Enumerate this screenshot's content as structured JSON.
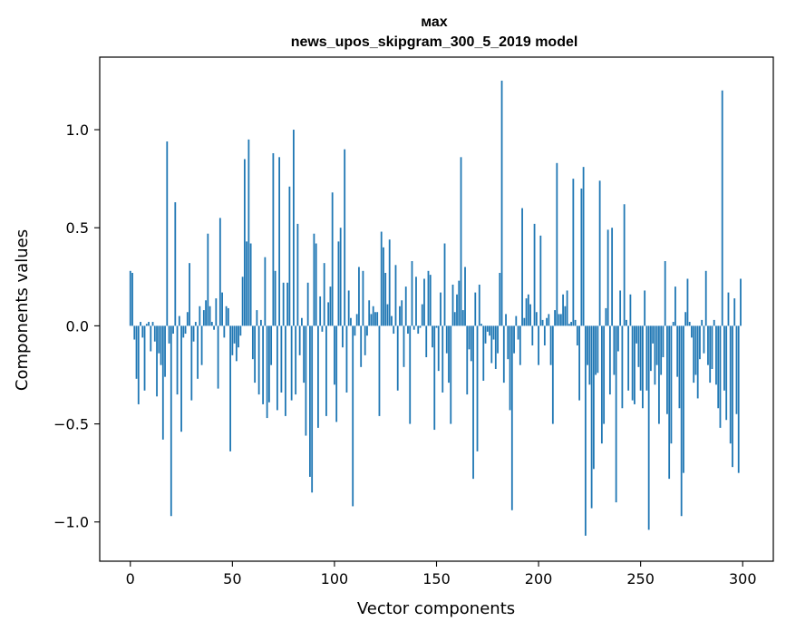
{
  "chart_data": {
    "type": "bar",
    "title": "мах",
    "subtitle": "news_upos_skipgram_300_5_2019 model",
    "xlabel": "Vector components",
    "ylabel": "Components values",
    "xlim": [
      -15,
      315
    ],
    "ylim": [
      -1.2,
      1.37
    ],
    "xticks": [
      0,
      50,
      100,
      150,
      200,
      250,
      300
    ],
    "xtick_labels": [
      "0",
      "50",
      "100",
      "150",
      "200",
      "250",
      "300"
    ],
    "yticks": [
      -1.0,
      -0.5,
      0.0,
      0.5,
      1.0
    ],
    "ytick_labels": [
      "−1.0",
      "−0.5",
      "0.0",
      "0.5",
      "1.0"
    ],
    "bar_color": "#1f77b4",
    "grid": false,
    "x": [
      0,
      1,
      2,
      3,
      4,
      5,
      6,
      7,
      8,
      9,
      10,
      11,
      12,
      13,
      14,
      15,
      16,
      17,
      18,
      19,
      20,
      21,
      22,
      23,
      24,
      25,
      26,
      27,
      28,
      29,
      30,
      31,
      32,
      33,
      34,
      35,
      36,
      37,
      38,
      39,
      40,
      41,
      42,
      43,
      44,
      45,
      46,
      47,
      48,
      49,
      50,
      51,
      52,
      53,
      54,
      55,
      56,
      57,
      58,
      59,
      60,
      61,
      62,
      63,
      64,
      65,
      66,
      67,
      68,
      69,
      70,
      71,
      72,
      73,
      74,
      75,
      76,
      77,
      78,
      79,
      80,
      81,
      82,
      83,
      84,
      85,
      86,
      87,
      88,
      89,
      90,
      91,
      92,
      93,
      94,
      95,
      96,
      97,
      98,
      99,
      100,
      101,
      102,
      103,
      104,
      105,
      106,
      107,
      108,
      109,
      110,
      111,
      112,
      113,
      114,
      115,
      116,
      117,
      118,
      119,
      120,
      121,
      122,
      123,
      124,
      125,
      126,
      127,
      128,
      129,
      130,
      131,
      132,
      133,
      134,
      135,
      136,
      137,
      138,
      139,
      140,
      141,
      142,
      143,
      144,
      145,
      146,
      147,
      148,
      149,
      150,
      151,
      152,
      153,
      154,
      155,
      156,
      157,
      158,
      159,
      160,
      161,
      162,
      163,
      164,
      165,
      166,
      167,
      168,
      169,
      170,
      171,
      172,
      173,
      174,
      175,
      176,
      177,
      178,
      179,
      180,
      181,
      182,
      183,
      184,
      185,
      186,
      187,
      188,
      189,
      190,
      191,
      192,
      193,
      194,
      195,
      196,
      197,
      198,
      199,
      200,
      201,
      202,
      203,
      204,
      205,
      206,
      207,
      208,
      209,
      210,
      211,
      212,
      213,
      214,
      215,
      216,
      217,
      218,
      219,
      220,
      221,
      222,
      223,
      224,
      225,
      226,
      227,
      228,
      229,
      230,
      231,
      232,
      233,
      234,
      235,
      236,
      237,
      238,
      239,
      240,
      241,
      242,
      243,
      244,
      245,
      246,
      247,
      248,
      249,
      250,
      251,
      252,
      253,
      254,
      255,
      256,
      257,
      258,
      259,
      260,
      261,
      262,
      263,
      264,
      265,
      266,
      267,
      268,
      269,
      270,
      271,
      272,
      273,
      274,
      275,
      276,
      277,
      278,
      279,
      280,
      281,
      282,
      283,
      284,
      285,
      286,
      287,
      288,
      289,
      290,
      291,
      292,
      293,
      294,
      295,
      296,
      297,
      298,
      299
    ],
    "values": [
      0.28,
      0.27,
      -0.07,
      -0.27,
      -0.4,
      0.02,
      -0.06,
      -0.33,
      0.01,
      0.02,
      -0.13,
      0.02,
      -0.08,
      -0.36,
      -0.14,
      -0.2,
      -0.58,
      -0.26,
      0.94,
      -0.09,
      -0.97,
      -0.04,
      0.63,
      -0.35,
      0.05,
      -0.54,
      -0.06,
      -0.04,
      0.07,
      0.32,
      -0.38,
      -0.08,
      0.02,
      -0.27,
      0.1,
      -0.2,
      0.08,
      0.13,
      0.47,
      0.1,
      0.02,
      -0.02,
      0.14,
      -0.32,
      0.55,
      0.17,
      -0.06,
      0.1,
      0.09,
      -0.64,
      -0.15,
      -0.09,
      -0.18,
      -0.11,
      -0.05,
      0.25,
      0.85,
      0.43,
      0.95,
      0.42,
      -0.17,
      -0.29,
      0.08,
      -0.35,
      0.03,
      -0.4,
      0.35,
      -0.47,
      -0.39,
      -0.2,
      0.88,
      0.28,
      -0.43,
      0.86,
      -0.34,
      0.22,
      -0.46,
      0.22,
      0.71,
      -0.38,
      1.0,
      -0.35,
      0.52,
      -0.15,
      0.04,
      -0.29,
      -0.56,
      0.22,
      -0.77,
      -0.85,
      0.47,
      0.42,
      -0.52,
      0.15,
      -0.03,
      0.32,
      -0.46,
      0.12,
      0.2,
      0.68,
      -0.3,
      -0.49,
      0.43,
      0.5,
      -0.11,
      0.9,
      -0.34,
      0.18,
      0.04,
      -0.92,
      -0.05,
      0.06,
      0.3,
      -0.21,
      0.28,
      -0.15,
      -0.05,
      0.13,
      0.06,
      0.1,
      0.07,
      0.07,
      -0.46,
      0.48,
      0.4,
      0.27,
      0.11,
      0.44,
      0.05,
      -0.04,
      0.31,
      -0.33,
      0.1,
      0.13,
      -0.21,
      0.2,
      -0.04,
      -0.5,
      0.33,
      -0.02,
      0.25,
      -0.04,
      -0.01,
      0.11,
      0.24,
      -0.16,
      0.28,
      0.26,
      -0.11,
      -0.53,
      -0.01,
      -0.23,
      0.17,
      -0.34,
      0.42,
      -0.14,
      -0.29,
      -0.5,
      0.21,
      0.07,
      0.16,
      0.23,
      0.86,
      0.08,
      0.3,
      -0.35,
      -0.12,
      -0.18,
      -0.78,
      0.17,
      -0.64,
      0.21,
      0.01,
      -0.28,
      -0.09,
      -0.03,
      -0.05,
      -0.19,
      -0.07,
      -0.22,
      -0.14,
      0.27,
      1.25,
      -0.29,
      0.06,
      -0.17,
      -0.43,
      -0.94,
      -0.14,
      0.05,
      -0.07,
      -0.2,
      0.6,
      0.04,
      0.14,
      0.16,
      0.11,
      -0.1,
      0.52,
      0.07,
      -0.2,
      0.46,
      0.03,
      -0.1,
      0.04,
      0.06,
      -0.2,
      -0.5,
      0.08,
      0.83,
      0.06,
      0.06,
      0.16,
      0.1,
      0.18,
      0.01,
      0.02,
      0.75,
      0.03,
      -0.1,
      -0.38,
      0.7,
      0.81,
      -1.07,
      -0.2,
      -0.3,
      -0.93,
      -0.73,
      -0.25,
      -0.24,
      0.74,
      -0.6,
      -0.5,
      0.09,
      0.49,
      -0.35,
      0.5,
      -0.25,
      -0.9,
      -0.13,
      0.18,
      -0.42,
      0.62,
      0.03,
      -0.33,
      0.16,
      -0.38,
      -0.4,
      -0.09,
      -0.21,
      -0.33,
      -0.42,
      0.18,
      -0.33,
      -1.04,
      -0.23,
      -0.09,
      -0.3,
      -0.2,
      -0.5,
      -0.25,
      -0.16,
      0.33,
      -0.45,
      -0.78,
      -0.6,
      0.02,
      0.2,
      -0.26,
      -0.42,
      -0.97,
      -0.75,
      0.07,
      0.24,
      0.02,
      -0.06,
      -0.29,
      -0.25,
      -0.37,
      -0.17,
      0.03,
      -0.14,
      0.28,
      -0.2,
      -0.29,
      -0.22,
      0.03,
      -0.3,
      -0.42,
      -0.52,
      1.2,
      -0.33,
      -0.48,
      0.17,
      -0.6,
      -0.72,
      0.14,
      -0.45,
      -0.75,
      0.24
    ]
  }
}
